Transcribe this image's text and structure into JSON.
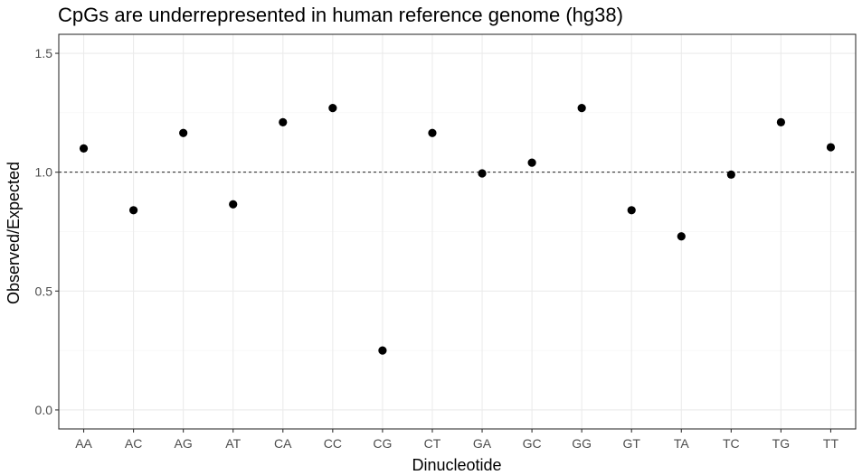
{
  "chart_data": {
    "type": "scatter",
    "title": "CpGs are underrepresented in human reference genome (hg38)",
    "xlabel": "Dinucleotide",
    "ylabel": "Observed/Expected",
    "categories": [
      "AA",
      "AC",
      "AG",
      "AT",
      "CA",
      "CC",
      "CG",
      "CT",
      "GA",
      "GC",
      "GG",
      "GT",
      "TA",
      "TC",
      "TG",
      "TT"
    ],
    "values": [
      1.1,
      0.84,
      1.165,
      0.865,
      1.21,
      1.27,
      0.25,
      1.165,
      0.995,
      1.04,
      1.27,
      0.84,
      0.73,
      0.99,
      1.21,
      1.105
    ],
    "ylim": [
      -0.08,
      1.58
    ],
    "yticks": [
      0.0,
      0.5,
      1.0,
      1.5
    ],
    "ytick_labels": [
      "0.0",
      "0.5",
      "1.0",
      "1.5"
    ],
    "reference_line": 1.0,
    "grid": true,
    "point_color": "#000000"
  }
}
